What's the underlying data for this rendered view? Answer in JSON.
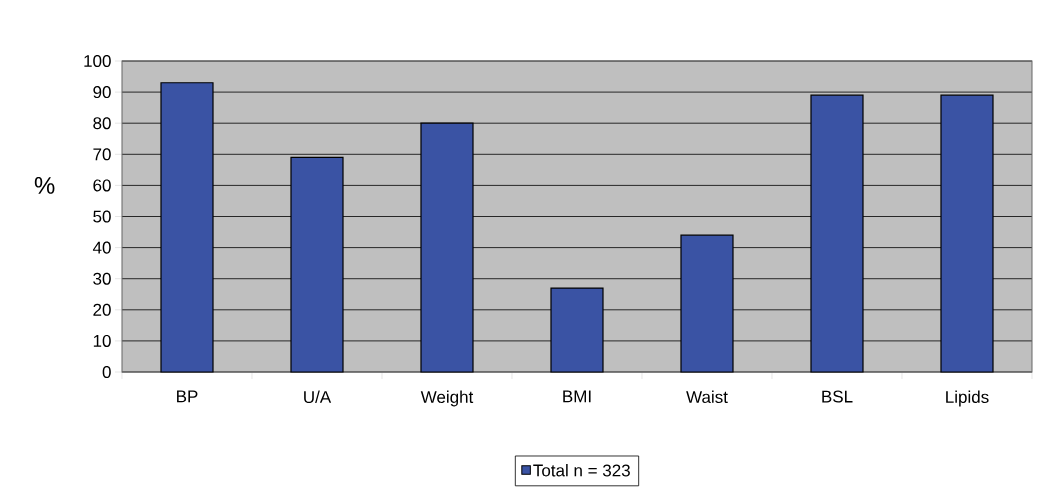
{
  "chart_data": {
    "type": "bar",
    "ylabel": "%",
    "categories": [
      "BP",
      "U/A",
      "Weight",
      "BMI",
      "Waist",
      "BSL",
      "Lipids"
    ],
    "series": [
      {
        "name": "Total n = 323",
        "color": "#3a53a4",
        "values": [
          93,
          69,
          80,
          27,
          44,
          89,
          89
        ]
      }
    ],
    "ylim": [
      0,
      100
    ],
    "yticks": [
      0,
      10,
      20,
      30,
      40,
      50,
      60,
      70,
      80,
      90,
      100
    ],
    "grid": "y",
    "legend": "bottom"
  }
}
